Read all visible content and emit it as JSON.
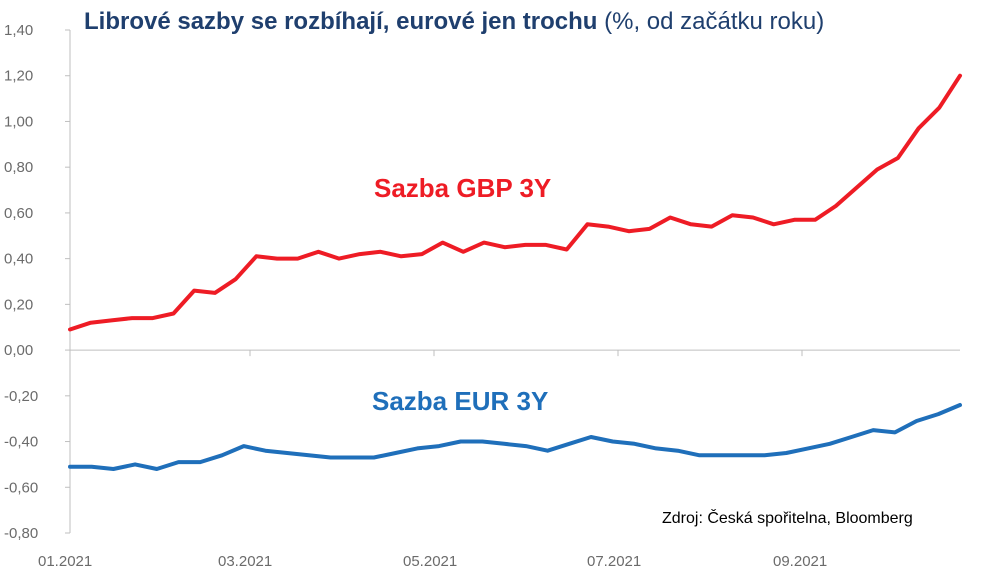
{
  "chart_data": {
    "type": "line",
    "title": "Librové sazby se rozbíhají, eurové jen trochu",
    "subtitle": "(%, od začátku roku)",
    "source": "Zdroj: Česká spořitelna, Bloomberg",
    "ylim": [
      -0.8,
      1.4
    ],
    "y_ticks": [
      1.4,
      1.2,
      1.0,
      0.8,
      0.6,
      0.4,
      0.2,
      0.0,
      -0.2,
      -0.4,
      -0.6,
      -0.8
    ],
    "y_tick_labels": [
      "1,40",
      "1,20",
      "1,00",
      "0,80",
      "0,60",
      "0,40",
      "0,20",
      "0,00",
      "-0,20",
      "-0,40",
      "-0,60",
      "-0,80"
    ],
    "x_tick_labels": [
      "01.2021",
      "03.2021",
      "05.2021",
      "07.2021",
      "09.2021"
    ],
    "grid": false,
    "series": [
      {
        "name": "Sazba GBP 3Y",
        "color": "#ee1c25",
        "values": [
          0.09,
          0.12,
          0.13,
          0.14,
          0.14,
          0.16,
          0.26,
          0.25,
          0.31,
          0.41,
          0.4,
          0.4,
          0.43,
          0.4,
          0.42,
          0.43,
          0.41,
          0.42,
          0.47,
          0.43,
          0.47,
          0.45,
          0.46,
          0.46,
          0.44,
          0.55,
          0.54,
          0.52,
          0.53,
          0.58,
          0.55,
          0.54,
          0.59,
          0.58,
          0.55,
          0.57,
          0.57,
          0.63,
          0.71,
          0.79,
          0.84,
          0.97,
          1.06,
          1.2
        ]
      },
      {
        "name": "Sazba EUR 3Y",
        "color": "#1f6fba",
        "values": [
          -0.51,
          -0.51,
          -0.52,
          -0.5,
          -0.52,
          -0.49,
          -0.49,
          -0.46,
          -0.42,
          -0.44,
          -0.45,
          -0.46,
          -0.47,
          -0.47,
          -0.47,
          -0.45,
          -0.43,
          -0.42,
          -0.4,
          -0.4,
          -0.41,
          -0.42,
          -0.44,
          -0.41,
          -0.38,
          -0.4,
          -0.41,
          -0.43,
          -0.44,
          -0.46,
          -0.46,
          -0.46,
          -0.46,
          -0.45,
          -0.43,
          -0.41,
          -0.38,
          -0.35,
          -0.36,
          -0.31,
          -0.28,
          -0.24
        ]
      }
    ]
  }
}
